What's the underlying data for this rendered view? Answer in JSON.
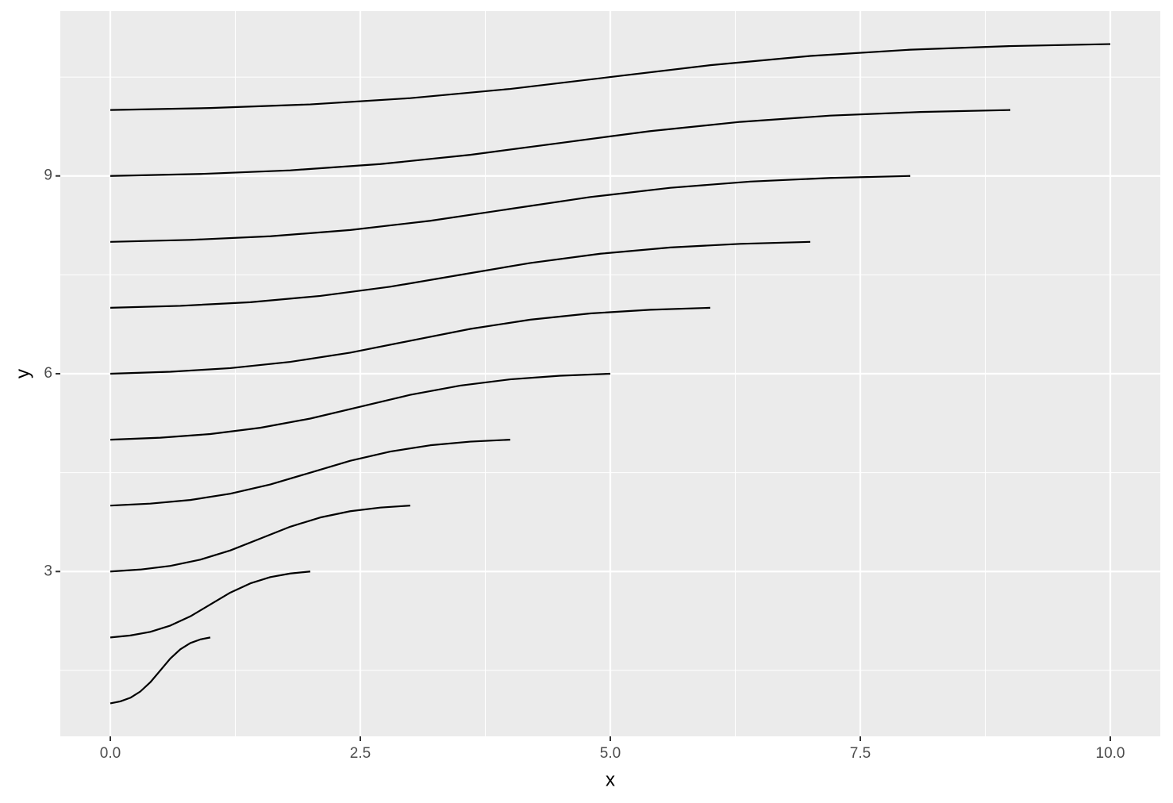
{
  "chart_data": {
    "type": "line",
    "x_label": "x",
    "y_label": "y",
    "color": "#000000",
    "grid": true,
    "xlim": [
      -0.5,
      10.5
    ],
    "ylim": [
      0.5,
      11.5
    ],
    "xticks": [
      {
        "value": 0,
        "label": "0.0"
      },
      {
        "value": 2.5,
        "label": "2.5"
      },
      {
        "value": 5,
        "label": "5.0"
      },
      {
        "value": 7.5,
        "label": "7.5"
      },
      {
        "value": 10,
        "label": "10.0"
      }
    ],
    "yticks": [
      3,
      6,
      9
    ],
    "series": [
      {
        "x": [
          0,
          0.1,
          0.2,
          0.3,
          0.4,
          0.5,
          0.6,
          0.7,
          0.8,
          0.9,
          1
        ],
        "values": [
          1,
          1.03,
          1.085,
          1.18,
          1.32,
          1.5,
          1.68,
          1.82,
          1.915,
          1.97,
          2
        ]
      },
      {
        "x": [
          0,
          0.2,
          0.4,
          0.6,
          0.8,
          1,
          1.2,
          1.4,
          1.6,
          1.8,
          2
        ],
        "values": [
          2,
          2.03,
          2.085,
          2.18,
          2.32,
          2.5,
          2.68,
          2.82,
          2.915,
          2.97,
          3
        ]
      },
      {
        "x": [
          0,
          0.3,
          0.6,
          0.9,
          1.2,
          1.5,
          1.8,
          2.1,
          2.4,
          2.7,
          3
        ],
        "values": [
          3,
          3.03,
          3.085,
          3.18,
          3.32,
          3.5,
          3.68,
          3.82,
          3.915,
          3.97,
          4
        ]
      },
      {
        "x": [
          0,
          0.4,
          0.8,
          1.2,
          1.6,
          2,
          2.4,
          2.8,
          3.2,
          3.6,
          4
        ],
        "values": [
          4,
          4.03,
          4.085,
          4.18,
          4.32,
          4.5,
          4.68,
          4.82,
          4.915,
          4.97,
          5
        ]
      },
      {
        "x": [
          0,
          0.5,
          1,
          1.5,
          2,
          2.5,
          3,
          3.5,
          4,
          4.5,
          5
        ],
        "values": [
          5,
          5.03,
          5.085,
          5.18,
          5.32,
          5.5,
          5.68,
          5.82,
          5.915,
          5.97,
          6
        ]
      },
      {
        "x": [
          0,
          0.6,
          1.2,
          1.8,
          2.4,
          3,
          3.6,
          4.2,
          4.8,
          5.4,
          6
        ],
        "values": [
          6,
          6.03,
          6.085,
          6.18,
          6.32,
          6.5,
          6.68,
          6.82,
          6.915,
          6.97,
          7
        ]
      },
      {
        "x": [
          0,
          0.7,
          1.4,
          2.1,
          2.8,
          3.5,
          4.2,
          4.9,
          5.6,
          6.3,
          7
        ],
        "values": [
          7,
          7.03,
          7.085,
          7.18,
          7.32,
          7.5,
          7.68,
          7.82,
          7.915,
          7.97,
          8
        ]
      },
      {
        "x": [
          0,
          0.8,
          1.6,
          2.4,
          3.2,
          4,
          4.8,
          5.6,
          6.4,
          7.2,
          8
        ],
        "values": [
          8,
          8.03,
          8.085,
          8.18,
          8.32,
          8.5,
          8.68,
          8.82,
          8.915,
          8.97,
          9
        ]
      },
      {
        "x": [
          0,
          0.9,
          1.8,
          2.7,
          3.6,
          4.5,
          5.4,
          6.3,
          7.2,
          8.1,
          9
        ],
        "values": [
          9,
          9.03,
          9.085,
          9.18,
          9.32,
          9.5,
          9.68,
          9.82,
          9.915,
          9.97,
          10
        ]
      },
      {
        "x": [
          0,
          1,
          2,
          3,
          4,
          5,
          6,
          7,
          8,
          9,
          10
        ],
        "values": [
          10,
          10.03,
          10.085,
          10.18,
          10.32,
          10.5,
          10.68,
          10.82,
          10.915,
          10.97,
          11
        ]
      }
    ]
  }
}
